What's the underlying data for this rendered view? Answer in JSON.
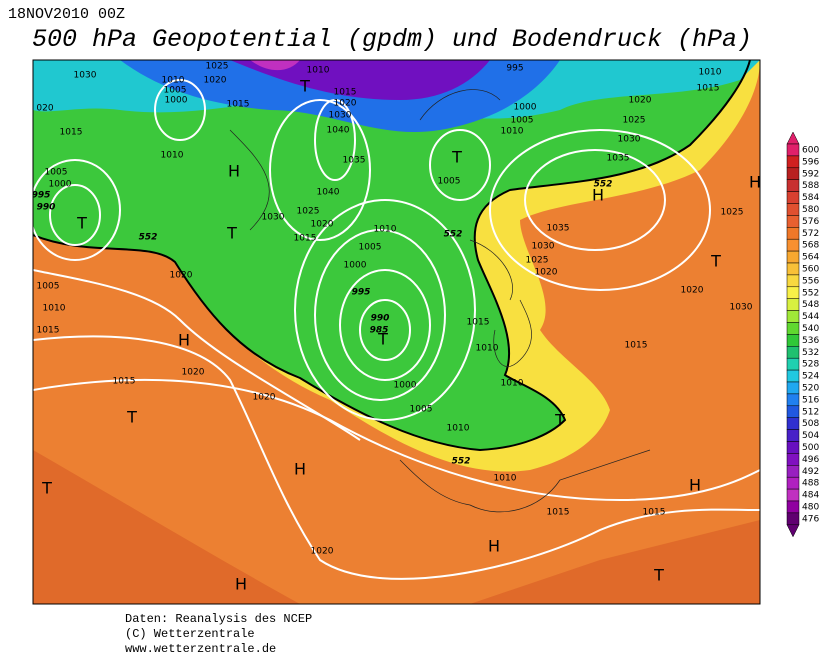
{
  "header": {
    "date": "18NOV2010 00Z",
    "title": "500 hPa Geopotential (gpdm) und Bodendruck (hPa)"
  },
  "map": {
    "labels": [
      "1030",
      "1010",
      "1005",
      "1000",
      "1025",
      "1020",
      "1015",
      "T",
      "1010",
      "1015",
      "1020",
      "1030",
      "1040",
      "1035",
      "1040",
      "1025",
      "1020",
      "1015",
      "1030",
      "T",
      "H",
      "1010",
      "1015",
      "020",
      "995",
      "1000",
      "1005",
      "1010",
      "T",
      "1005",
      "1010",
      "1015",
      "1020",
      "1025",
      "1030",
      "1035",
      "552",
      "H",
      "H",
      "1025",
      "T",
      "1030",
      "1020",
      "1015",
      "1035",
      "1030",
      "1025",
      "1020",
      "552",
      "1010",
      "1005",
      "1000",
      "995",
      "990",
      "985",
      "T",
      "1000",
      "1005",
      "1010",
      "1015",
      "1010",
      "1010",
      "T",
      "552",
      "1010",
      "1015",
      "1015",
      "H",
      "H",
      "T",
      "1005",
      "1000",
      "995",
      "990",
      "T",
      "552",
      "1005",
      "1010",
      "1015",
      "1020",
      "H",
      "1020",
      "1015",
      "T",
      "1020",
      "H",
      "T",
      "1020",
      "H"
    ]
  },
  "colorbar": {
    "values": [
      600,
      596,
      592,
      588,
      584,
      580,
      576,
      572,
      568,
      564,
      560,
      556,
      552,
      548,
      544,
      540,
      536,
      532,
      528,
      524,
      520,
      516,
      512,
      508,
      504,
      500,
      496,
      492,
      488,
      484,
      480,
      476
    ],
    "colors": [
      "#e0206a",
      "#d02020",
      "#b82020",
      "#c83030",
      "#d84030",
      "#e05030",
      "#e86030",
      "#f07828",
      "#f89030",
      "#f8a830",
      "#f8c038",
      "#f8d840",
      "#f8f048",
      "#d8f040",
      "#a0e838",
      "#60d830",
      "#30c838",
      "#20c070",
      "#20d0b0",
      "#20c8e0",
      "#20a8f0",
      "#2080f0",
      "#2058e0",
      "#3030d0",
      "#4820c8",
      "#6810c0",
      "#8010c0",
      "#9820c0",
      "#b020c0",
      "#c030c0",
      "#9000a0",
      "#600070"
    ]
  },
  "footer": [
    "Daten: Reanalysis des NCEP",
    "(C) Wetterzentrale",
    "www.wetterzentrale.de"
  ]
}
